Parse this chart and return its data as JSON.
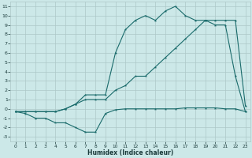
{
  "xlabel": "Humidex (Indice chaleur)",
  "bg_color": "#cce8e8",
  "grid_color": "#adc8c8",
  "line_color": "#1a6b6b",
  "xlim": [
    -0.5,
    23.5
  ],
  "ylim": [
    -3.5,
    11.5
  ],
  "xticks": [
    0,
    1,
    2,
    3,
    4,
    5,
    6,
    7,
    8,
    9,
    10,
    11,
    12,
    13,
    14,
    15,
    16,
    17,
    18,
    19,
    20,
    21,
    22,
    23
  ],
  "yticks": [
    -3,
    -2,
    -1,
    0,
    1,
    2,
    3,
    4,
    5,
    6,
    7,
    8,
    9,
    10,
    11
  ],
  "line1_x": [
    0,
    1,
    2,
    3,
    4,
    5,
    6,
    7,
    8,
    9,
    10,
    11,
    12,
    13,
    14,
    15,
    16,
    17,
    18,
    19,
    20,
    21,
    22,
    23
  ],
  "line1_y": [
    -0.3,
    -0.5,
    -1.0,
    -1.0,
    -1.5,
    -1.5,
    -2.0,
    -2.5,
    -2.5,
    -0.5,
    -0.1,
    0.0,
    0.0,
    0.0,
    0.0,
    0.0,
    0.0,
    0.1,
    0.1,
    0.1,
    0.1,
    0.0,
    0.0,
    -0.3
  ],
  "line2_x": [
    0,
    1,
    2,
    3,
    4,
    5,
    6,
    7,
    8,
    9,
    10,
    11,
    12,
    13,
    14,
    15,
    16,
    17,
    18,
    19,
    20,
    21,
    22,
    23
  ],
  "line2_y": [
    -0.3,
    -0.3,
    -0.3,
    -0.3,
    -0.3,
    0.0,
    0.5,
    1.0,
    1.0,
    1.0,
    2.0,
    2.5,
    3.5,
    3.5,
    4.5,
    5.5,
    6.5,
    7.5,
    8.5,
    9.5,
    9.5,
    9.5,
    9.5,
    0.3
  ],
  "line3_x": [
    0,
    1,
    2,
    3,
    4,
    5,
    6,
    7,
    8,
    9,
    10,
    11,
    12,
    13,
    14,
    15,
    16,
    17,
    18,
    19,
    20,
    21,
    22,
    23
  ],
  "line3_y": [
    -0.3,
    -0.3,
    -0.3,
    -0.3,
    -0.3,
    0.0,
    0.5,
    1.5,
    1.5,
    1.5,
    6.0,
    8.5,
    9.5,
    10.0,
    9.5,
    10.5,
    11.0,
    10.0,
    9.5,
    9.5,
    9.0,
    9.0,
    3.5,
    -0.3
  ]
}
